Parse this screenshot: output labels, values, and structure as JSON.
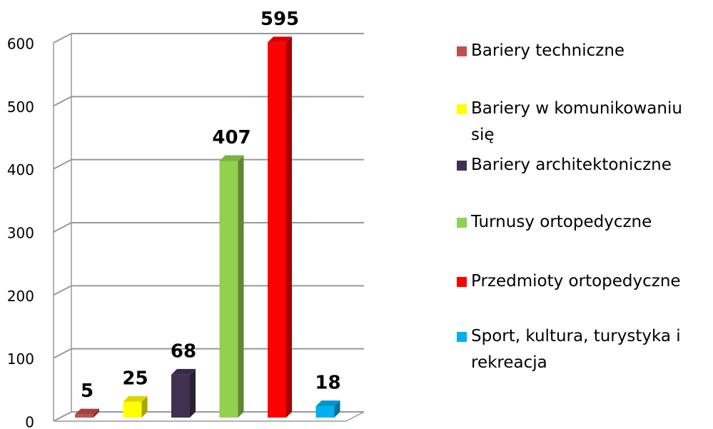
{
  "chart_data": {
    "type": "bar3d",
    "series": [
      {
        "name": "Bariery techniczne",
        "color": "#c0504d",
        "values": [
          5
        ]
      },
      {
        "name": "Bariery w komunikowaniu się",
        "color": "#ffff00",
        "values": [
          25
        ]
      },
      {
        "name": "Bariery architektoniczne",
        "color": "#403152",
        "values": [
          68
        ]
      },
      {
        "name": "Turnusy ortopedyczne",
        "color": "#92d050",
        "values": [
          407
        ]
      },
      {
        "name": "Przedmioty ortopedyczne",
        "color": "#ff0000",
        "values": [
          595
        ]
      },
      {
        "name": "Sport, kultura, turystyka i rekreacja",
        "color": "#00b0f0",
        "values": [
          18
        ]
      }
    ],
    "ylim": [
      0,
      600
    ],
    "yticks": [
      0,
      100,
      200,
      300,
      400,
      500,
      600
    ],
    "grid": true,
    "legend": "right"
  }
}
